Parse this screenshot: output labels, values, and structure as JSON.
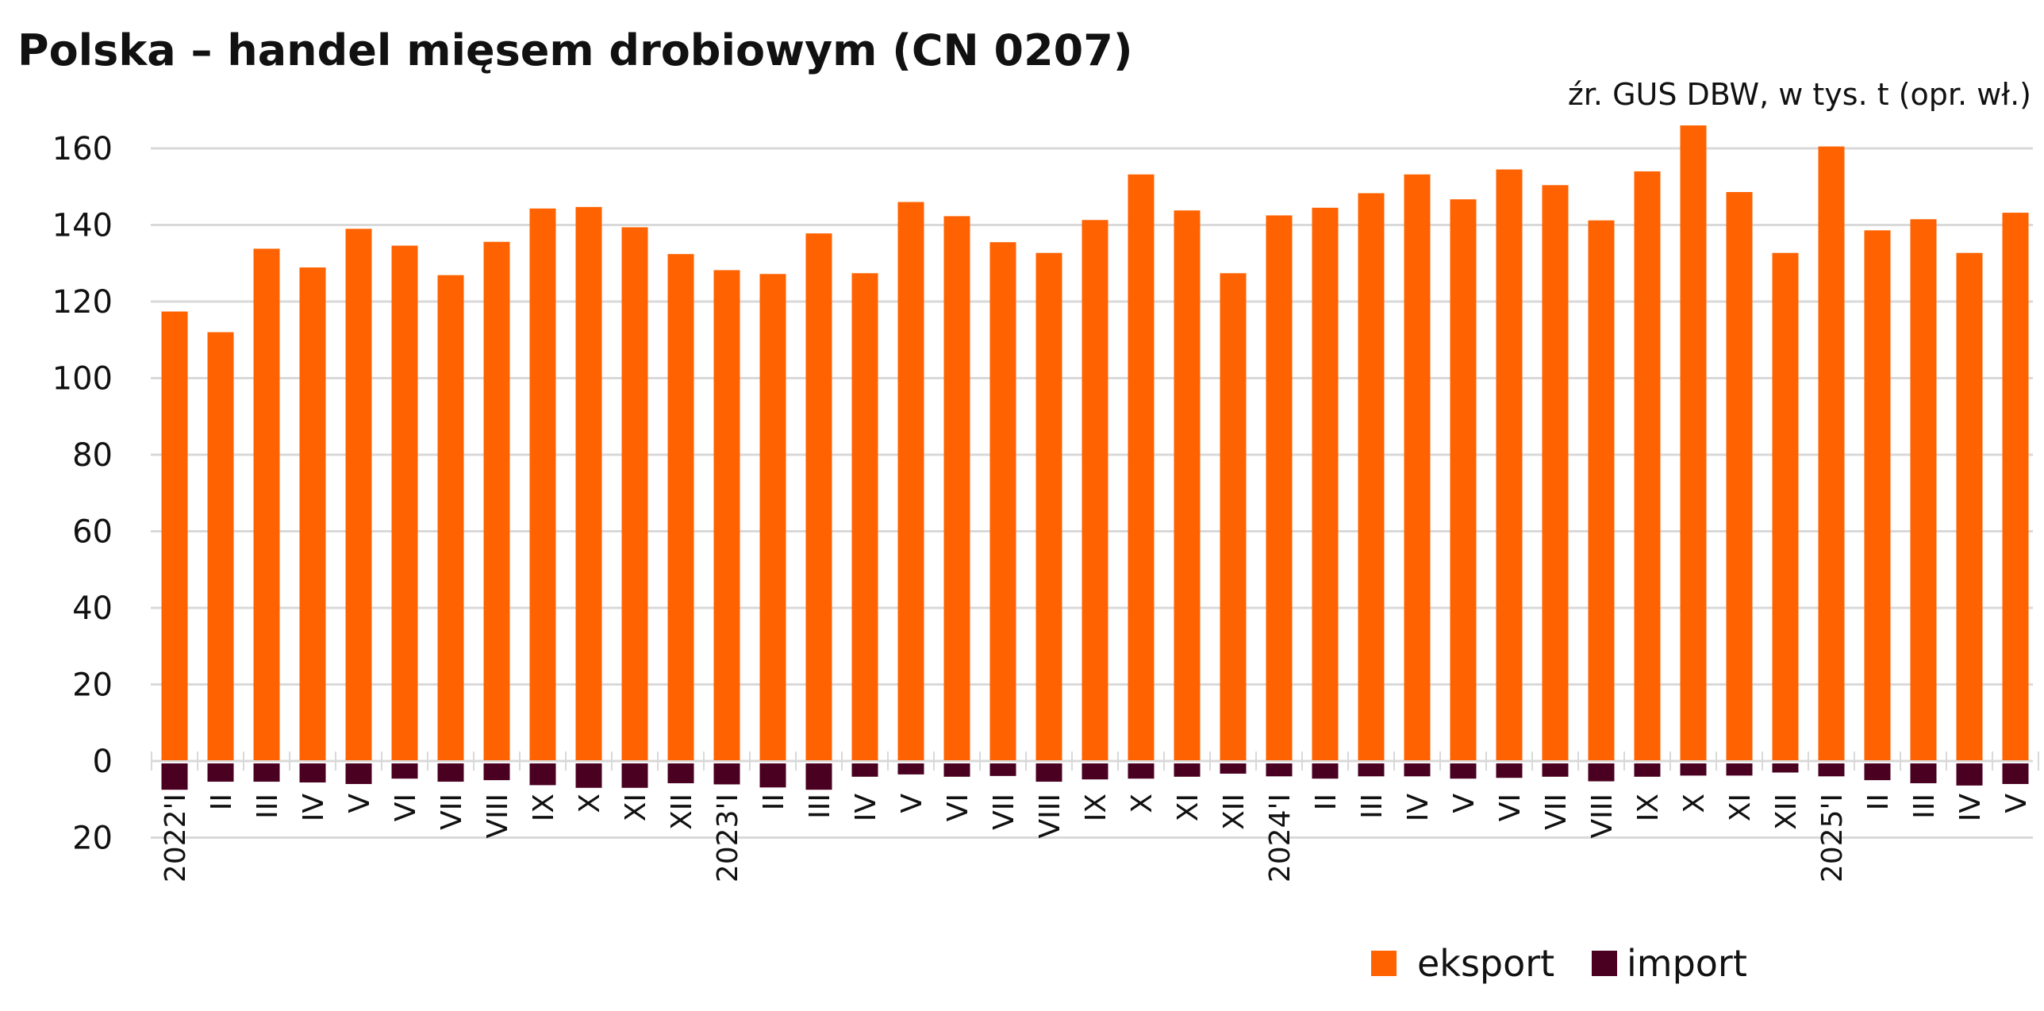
{
  "chart_data": {
    "type": "bar",
    "title": "Polska – handel mięsem drobiowym (CN 0207)",
    "subtitle": "źr. GUS DBW, w tys. t (opr. wł.)",
    "xlabel": "",
    "ylabel": "",
    "ylim": [
      -20,
      165
    ],
    "yticks": [
      160,
      140,
      120,
      100,
      80,
      60,
      40,
      20,
      0,
      -20
    ],
    "ytick_labels": [
      "160",
      "140",
      "120",
      "100",
      "80",
      "60",
      "40",
      "20",
      "0",
      "20"
    ],
    "grid": true,
    "legend_position": "bottom-right",
    "categories": [
      "2022'I",
      "II",
      "III",
      "IV",
      "V",
      "VI",
      "VII",
      "VIII",
      "IX",
      "X",
      "XI",
      "XII",
      "2023'I",
      "II",
      "III",
      "IV",
      "V",
      "VI",
      "VII",
      "VIII",
      "IX",
      "X",
      "XI",
      "XII",
      "2024'I",
      "II",
      "III",
      "IV",
      "V",
      "VI",
      "VII",
      "VIII",
      "IX",
      "X",
      "XI",
      "XII",
      "2025'I",
      "II",
      "III",
      "IV",
      "V"
    ],
    "series": [
      {
        "name": "eksport",
        "color": "#FF6200",
        "values": [
          117.4,
          112.0,
          133.8,
          128.9,
          139.0,
          134.6,
          126.9,
          135.6,
          144.3,
          144.7,
          139.4,
          132.4,
          128.2,
          127.2,
          137.8,
          127.4,
          146.0,
          142.3,
          135.5,
          132.7,
          141.3,
          153.2,
          143.8,
          127.4,
          142.5,
          144.5,
          148.3,
          153.2,
          146.7,
          154.5,
          150.4,
          141.2,
          154.0,
          166.0,
          148.6,
          132.7,
          160.5,
          138.6,
          141.5,
          132.7,
          143.2
        ]
      },
      {
        "name": "import",
        "color": "#4A0020",
        "values": [
          -7.5,
          -5.4,
          -5.4,
          -5.6,
          -6.0,
          -4.6,
          -5.4,
          -5.0,
          -6.3,
          -7.0,
          -7.0,
          -5.8,
          -6.1,
          -6.9,
          -7.5,
          -4.1,
          -3.5,
          -4.1,
          -3.9,
          -5.4,
          -4.8,
          -4.6,
          -4.1,
          -3.3,
          -4.0,
          -4.6,
          -4.0,
          -4.0,
          -4.6,
          -4.4,
          -4.1,
          -5.3,
          -4.1,
          -3.8,
          -3.8,
          -3.0,
          -4.0,
          -5.0,
          -5.8,
          -6.4,
          -6.0
        ]
      }
    ]
  }
}
